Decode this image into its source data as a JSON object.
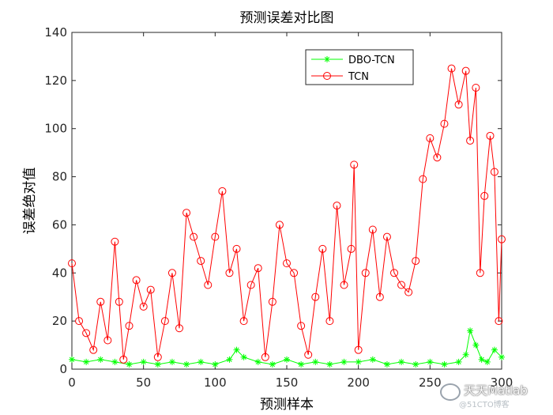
{
  "chart_data": {
    "type": "line",
    "title": "预测误差对比图",
    "xlabel": "预测样本",
    "ylabel": "误差绝对值",
    "xlim": [
      0,
      300
    ],
    "ylim": [
      0,
      140
    ],
    "xticks": [
      0,
      50,
      100,
      150,
      200,
      250,
      300
    ],
    "yticks": [
      0,
      20,
      40,
      60,
      80,
      100,
      120,
      140
    ],
    "xtick_labels": [
      "0",
      "50",
      "100",
      "150",
      "200",
      "250",
      "300"
    ],
    "ytick_labels": [
      "0",
      "20",
      "40",
      "60",
      "80",
      "100",
      "120",
      "140"
    ],
    "grid": false,
    "legend_position": "top-right",
    "series": [
      {
        "name": "DBO-TCN",
        "color": "#00ff00",
        "marker": "asterisk",
        "x": [
          0,
          10,
          20,
          30,
          40,
          50,
          60,
          70,
          80,
          90,
          100,
          110,
          115,
          120,
          130,
          140,
          150,
          160,
          170,
          180,
          190,
          200,
          210,
          220,
          230,
          240,
          250,
          260,
          270,
          275,
          278,
          282,
          286,
          290,
          295,
          300
        ],
        "values": [
          4,
          3,
          4,
          3,
          2,
          3,
          2,
          3,
          2,
          3,
          2,
          4,
          8,
          5,
          3,
          2,
          4,
          2,
          3,
          2,
          3,
          3,
          4,
          2,
          3,
          2,
          3,
          2,
          3,
          6,
          16,
          10,
          4,
          3,
          8,
          5
        ]
      },
      {
        "name": "TCN",
        "color": "#ff0000",
        "marker": "circle",
        "x": [
          0,
          5,
          10,
          15,
          20,
          25,
          30,
          33,
          36,
          40,
          45,
          50,
          55,
          60,
          65,
          70,
          75,
          80,
          85,
          90,
          95,
          100,
          105,
          110,
          115,
          120,
          125,
          130,
          135,
          140,
          145,
          150,
          155,
          160,
          165,
          170,
          175,
          180,
          185,
          190,
          195,
          197,
          200,
          205,
          210,
          215,
          220,
          225,
          230,
          235,
          240,
          245,
          250,
          255,
          260,
          265,
          270,
          275,
          278,
          282,
          285,
          288,
          292,
          295,
          298,
          300
        ],
        "values": [
          44,
          20,
          15,
          8,
          28,
          12,
          53,
          28,
          4,
          18,
          37,
          26,
          33,
          5,
          20,
          40,
          17,
          65,
          55,
          45,
          35,
          55,
          74,
          40,
          50,
          20,
          35,
          42,
          5,
          28,
          60,
          44,
          40,
          18,
          6,
          30,
          50,
          20,
          68,
          35,
          50,
          85,
          8,
          40,
          58,
          30,
          55,
          40,
          35,
          32,
          45,
          79,
          96,
          88,
          102,
          125,
          110,
          124,
          95,
          117,
          40,
          72,
          97,
          82,
          20,
          54
        ]
      }
    ],
    "watermark": {
      "name": "天天Matlab",
      "sub": "@51CTO博客"
    }
  }
}
